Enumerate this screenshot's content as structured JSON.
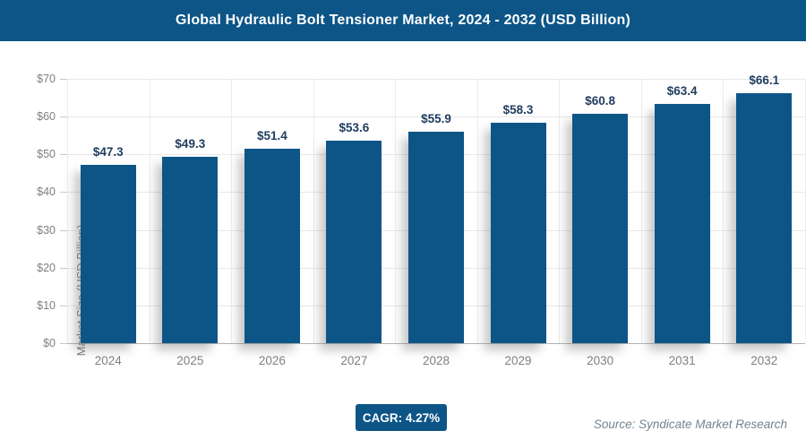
{
  "header": {
    "title": "Global Hydraulic Bolt Tensioner Market, 2024 - 2032 (USD Billion)"
  },
  "colors": {
    "brand_blue": "#0d5587",
    "bar_fill": "#0d5587",
    "value_label": "#1f3c5e",
    "axis_text": "#7f7f7f",
    "gridline": "#ececec",
    "source_text": "#73858f"
  },
  "chart_data": {
    "type": "bar",
    "title": "Global Hydraulic Bolt Tensioner Market, 2024 - 2032 (USD Billion)",
    "categories": [
      "2024",
      "2025",
      "2026",
      "2027",
      "2028",
      "2029",
      "2030",
      "2031",
      "2032"
    ],
    "values": [
      47.3,
      49.3,
      51.4,
      53.6,
      55.9,
      58.3,
      60.8,
      63.4,
      66.1
    ],
    "value_labels": [
      "$47.3",
      "$49.3",
      "$51.4",
      "$53.6",
      "$55.9",
      "$58.3",
      "$60.8",
      "$63.4",
      "$66.1"
    ],
    "xlabel": "",
    "ylabel": "Market Size (USD Billion)",
    "ylim": [
      0,
      70
    ],
    "yticks": [
      0,
      10,
      20,
      30,
      40,
      50,
      60,
      70
    ],
    "ytick_labels": [
      "$0",
      "$10",
      "$20",
      "$30",
      "$40",
      "$50",
      "$60",
      "$70"
    ],
    "grid": "on",
    "legend": "none"
  },
  "footer": {
    "cagr_label": "CAGR: 4.27%",
    "source": "Source: Syndicate Market Research"
  }
}
